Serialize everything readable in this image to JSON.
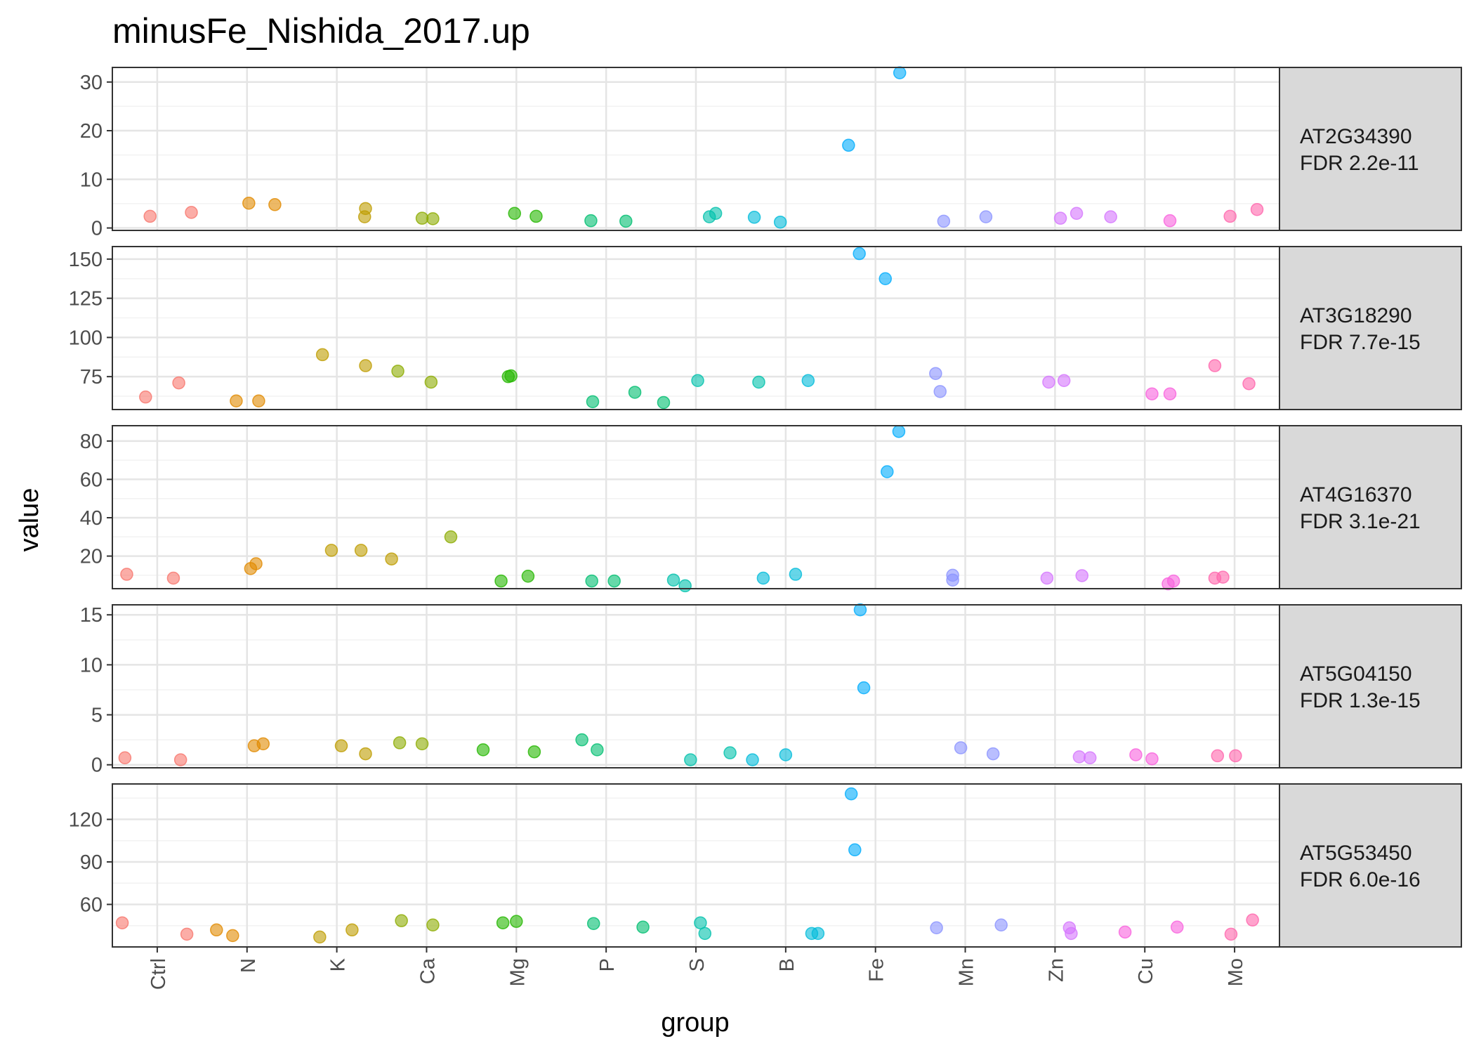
{
  "chart_data": {
    "type": "scatter",
    "title": "minusFe_Nishida_2017.up",
    "xlabel": "group",
    "ylabel": "value",
    "categories": [
      "Ctrl",
      "N",
      "K",
      "Ca",
      "Mg",
      "P",
      "S",
      "B",
      "Fe",
      "Mn",
      "Zn",
      "Cu",
      "Mo"
    ],
    "colors": {
      "Ctrl": "#F8766D",
      "N": "#E18A00",
      "K": "#BE9C00",
      "Ca": "#8CAB00",
      "Mg": "#24B700",
      "P": "#00BE70",
      "S": "#00C1AB",
      "B": "#00BBDA",
      "Fe": "#00ACFC",
      "Mn": "#8B93FF",
      "Zn": "#D575FE",
      "Cu": "#F962DD",
      "Mo": "#FF65AC"
    },
    "grid": true,
    "legend": "none",
    "panels": [
      {
        "gene": "AT2G34390",
        "fdr": "FDR 2.2e-11",
        "ylim": [
          -0.5,
          33
        ],
        "yticks": [
          0,
          10,
          20,
          30
        ],
        "points": [
          {
            "group": "Ctrl",
            "jitter": -0.08,
            "value": 2.4
          },
          {
            "group": "Ctrl",
            "jitter": 0.38,
            "value": 3.2
          },
          {
            "group": "N",
            "jitter": 0.02,
            "value": 5.1
          },
          {
            "group": "N",
            "jitter": 0.31,
            "value": 4.8
          },
          {
            "group": "K",
            "jitter": 0.32,
            "value": 4.0
          },
          {
            "group": "K",
            "jitter": 0.31,
            "value": 2.3
          },
          {
            "group": "Ca",
            "jitter": -0.05,
            "value": 2.0
          },
          {
            "group": "Ca",
            "jitter": 0.07,
            "value": 1.9
          },
          {
            "group": "Mg",
            "jitter": -0.02,
            "value": 3.0
          },
          {
            "group": "Mg",
            "jitter": 0.22,
            "value": 2.4
          },
          {
            "group": "P",
            "jitter": -0.17,
            "value": 1.5
          },
          {
            "group": "P",
            "jitter": 0.22,
            "value": 1.4
          },
          {
            "group": "S",
            "jitter": 0.15,
            "value": 2.3
          },
          {
            "group": "S",
            "jitter": 0.22,
            "value": 3.0
          },
          {
            "group": "B",
            "jitter": -0.35,
            "value": 2.2
          },
          {
            "group": "B",
            "jitter": -0.06,
            "value": 1.2
          },
          {
            "group": "Fe",
            "jitter": -0.3,
            "value": 17.0
          },
          {
            "group": "Fe",
            "jitter": 0.27,
            "value": 31.9
          },
          {
            "group": "Mn",
            "jitter": -0.24,
            "value": 1.4
          },
          {
            "group": "Mn",
            "jitter": 0.23,
            "value": 2.3
          },
          {
            "group": "Zn",
            "jitter": 0.06,
            "value": 2.0
          },
          {
            "group": "Zn",
            "jitter": 0.24,
            "value": 3.0
          },
          {
            "group": "Zn",
            "jitter": 0.62,
            "value": 2.3
          },
          {
            "group": "Cu",
            "jitter": 0.28,
            "value": 1.5
          },
          {
            "group": "Mo",
            "jitter": -0.05,
            "value": 2.4
          },
          {
            "group": "Mo",
            "jitter": 0.25,
            "value": 3.8
          }
        ]
      },
      {
        "gene": "AT3G18290",
        "fdr": "FDR 7.7e-15",
        "ylim": [
          54,
          158
        ],
        "yticks": [
          75,
          100,
          125,
          150
        ],
        "points": [
          {
            "group": "Ctrl",
            "jitter": -0.13,
            "value": 62
          },
          {
            "group": "Ctrl",
            "jitter": 0.24,
            "value": 71
          },
          {
            "group": "N",
            "jitter": -0.12,
            "value": 59.5
          },
          {
            "group": "N",
            "jitter": 0.13,
            "value": 59.5
          },
          {
            "group": "K",
            "jitter": -0.16,
            "value": 89
          },
          {
            "group": "K",
            "jitter": 0.32,
            "value": 82
          },
          {
            "group": "Ca",
            "jitter": -0.32,
            "value": 78.5
          },
          {
            "group": "Ca",
            "jitter": 0.05,
            "value": 71.5
          },
          {
            "group": "Mg",
            "jitter": -0.09,
            "value": 75
          },
          {
            "group": "Mg",
            "jitter": -0.06,
            "value": 75.5
          },
          {
            "group": "P",
            "jitter": -0.15,
            "value": 59
          },
          {
            "group": "P",
            "jitter": 0.32,
            "value": 65
          },
          {
            "group": "P",
            "jitter": 0.64,
            "value": 58.5
          },
          {
            "group": "S",
            "jitter": 0.02,
            "value": 72.5
          },
          {
            "group": "S",
            "jitter": 0.7,
            "value": 71.5
          },
          {
            "group": "B",
            "jitter": 0.25,
            "value": 72.5
          },
          {
            "group": "Fe",
            "jitter": -0.18,
            "value": 153.5
          },
          {
            "group": "Fe",
            "jitter": 0.11,
            "value": 137.5
          },
          {
            "group": "Mn",
            "jitter": -0.33,
            "value": 77
          },
          {
            "group": "Mn",
            "jitter": -0.28,
            "value": 65.5
          },
          {
            "group": "Zn",
            "jitter": -0.07,
            "value": 71.5
          },
          {
            "group": "Zn",
            "jitter": 0.1,
            "value": 72.5
          },
          {
            "group": "Cu",
            "jitter": 0.08,
            "value": 64
          },
          {
            "group": "Cu",
            "jitter": 0.28,
            "value": 64
          },
          {
            "group": "Mo",
            "jitter": -0.22,
            "value": 82
          },
          {
            "group": "Mo",
            "jitter": 0.16,
            "value": 70.5
          }
        ]
      },
      {
        "gene": "AT4G16370",
        "fdr": "FDR 3.1e-21",
        "ylim": [
          3,
          88
        ],
        "yticks": [
          20,
          40,
          60,
          80
        ],
        "points": [
          {
            "group": "Ctrl",
            "jitter": -0.34,
            "value": 10.5
          },
          {
            "group": "Ctrl",
            "jitter": 0.18,
            "value": 8.5
          },
          {
            "group": "N",
            "jitter": 0.04,
            "value": 13.5
          },
          {
            "group": "N",
            "jitter": 0.1,
            "value": 16
          },
          {
            "group": "K",
            "jitter": -0.06,
            "value": 23
          },
          {
            "group": "K",
            "jitter": 0.27,
            "value": 23
          },
          {
            "group": "K",
            "jitter": 0.61,
            "value": 18.5
          },
          {
            "group": "Ca",
            "jitter": 0.27,
            "value": 30
          },
          {
            "group": "Mg",
            "jitter": -0.17,
            "value": 7
          },
          {
            "group": "Mg",
            "jitter": 0.13,
            "value": 9.5
          },
          {
            "group": "P",
            "jitter": -0.16,
            "value": 7
          },
          {
            "group": "P",
            "jitter": 0.09,
            "value": 7
          },
          {
            "group": "S",
            "jitter": -0.25,
            "value": 7.5
          },
          {
            "group": "S",
            "jitter": -0.12,
            "value": 4.5
          },
          {
            "group": "B",
            "jitter": -0.25,
            "value": 8.5
          },
          {
            "group": "B",
            "jitter": 0.11,
            "value": 10.5
          },
          {
            "group": "Fe",
            "jitter": 0.13,
            "value": 64
          },
          {
            "group": "Fe",
            "jitter": 0.26,
            "value": 85
          },
          {
            "group": "Mn",
            "jitter": -0.14,
            "value": 10
          },
          {
            "group": "Mn",
            "jitter": -0.14,
            "value": 7.5
          },
          {
            "group": "Zn",
            "jitter": -0.09,
            "value": 8.5
          },
          {
            "group": "Zn",
            "jitter": 0.3,
            "value": 9.8
          },
          {
            "group": "Cu",
            "jitter": 0.26,
            "value": 5.5
          },
          {
            "group": "Cu",
            "jitter": 0.32,
            "value": 7
          },
          {
            "group": "Mo",
            "jitter": -0.22,
            "value": 8.5
          },
          {
            "group": "Mo",
            "jitter": -0.13,
            "value": 9
          }
        ]
      },
      {
        "gene": "AT5G04150",
        "fdr": "FDR 1.3e-15",
        "ylim": [
          -0.3,
          16
        ],
        "yticks": [
          0,
          5,
          10,
          15
        ],
        "points": [
          {
            "group": "Ctrl",
            "jitter": -0.36,
            "value": 0.7
          },
          {
            "group": "Ctrl",
            "jitter": 0.26,
            "value": 0.5
          },
          {
            "group": "N",
            "jitter": 0.08,
            "value": 1.9
          },
          {
            "group": "N",
            "jitter": 0.18,
            "value": 2.1
          },
          {
            "group": "K",
            "jitter": 0.05,
            "value": 1.9
          },
          {
            "group": "K",
            "jitter": 0.32,
            "value": 1.1
          },
          {
            "group": "Ca",
            "jitter": -0.3,
            "value": 2.2
          },
          {
            "group": "Ca",
            "jitter": -0.05,
            "value": 2.1
          },
          {
            "group": "Mg",
            "jitter": -0.37,
            "value": 1.5
          },
          {
            "group": "Mg",
            "jitter": 0.2,
            "value": 1.3
          },
          {
            "group": "P",
            "jitter": -0.27,
            "value": 2.5
          },
          {
            "group": "P",
            "jitter": -0.1,
            "value": 1.5
          },
          {
            "group": "S",
            "jitter": -0.06,
            "value": 0.5
          },
          {
            "group": "S",
            "jitter": 0.38,
            "value": 1.2
          },
          {
            "group": "B",
            "jitter": -0.37,
            "value": 0.5
          },
          {
            "group": "B",
            "jitter": 0.0,
            "value": 1.0
          },
          {
            "group": "Fe",
            "jitter": -0.17,
            "value": 15.5
          },
          {
            "group": "Fe",
            "jitter": -0.13,
            "value": 7.7
          },
          {
            "group": "Mn",
            "jitter": -0.05,
            "value": 1.7
          },
          {
            "group": "Mn",
            "jitter": 0.31,
            "value": 1.1
          },
          {
            "group": "Zn",
            "jitter": 0.27,
            "value": 0.8
          },
          {
            "group": "Zn",
            "jitter": 0.39,
            "value": 0.7
          },
          {
            "group": "Cu",
            "jitter": -0.1,
            "value": 1.0
          },
          {
            "group": "Cu",
            "jitter": 0.08,
            "value": 0.6
          },
          {
            "group": "Mo",
            "jitter": -0.19,
            "value": 0.9
          },
          {
            "group": "Mo",
            "jitter": 0.01,
            "value": 0.9
          }
        ]
      },
      {
        "gene": "AT5G53450",
        "fdr": "FDR 6.0e-16",
        "ylim": [
          30,
          145
        ],
        "yticks": [
          60,
          90,
          120
        ],
        "points": [
          {
            "group": "Ctrl",
            "jitter": -0.39,
            "value": 47
          },
          {
            "group": "Ctrl",
            "jitter": 0.33,
            "value": 39
          },
          {
            "group": "N",
            "jitter": -0.34,
            "value": 42
          },
          {
            "group": "N",
            "jitter": -0.16,
            "value": 38
          },
          {
            "group": "K",
            "jitter": -0.19,
            "value": 37
          },
          {
            "group": "K",
            "jitter": 0.17,
            "value": 42
          },
          {
            "group": "Ca",
            "jitter": -0.28,
            "value": 48.5
          },
          {
            "group": "Ca",
            "jitter": 0.07,
            "value": 45.5
          },
          {
            "group": "Mg",
            "jitter": -0.15,
            "value": 47
          },
          {
            "group": "Mg",
            "jitter": 0.0,
            "value": 48
          },
          {
            "group": "P",
            "jitter": -0.14,
            "value": 46.5
          },
          {
            "group": "P",
            "jitter": 0.41,
            "value": 44
          },
          {
            "group": "S",
            "jitter": 0.05,
            "value": 47
          },
          {
            "group": "S",
            "jitter": 0.1,
            "value": 39.5
          },
          {
            "group": "B",
            "jitter": 0.29,
            "value": 39.5
          },
          {
            "group": "B",
            "jitter": 0.36,
            "value": 39.5
          },
          {
            "group": "Fe",
            "jitter": -0.27,
            "value": 138
          },
          {
            "group": "Fe",
            "jitter": -0.23,
            "value": 98.5
          },
          {
            "group": "Mn",
            "jitter": -0.32,
            "value": 43.5
          },
          {
            "group": "Mn",
            "jitter": 0.4,
            "value": 45.5
          },
          {
            "group": "Zn",
            "jitter": 0.16,
            "value": 43.5
          },
          {
            "group": "Zn",
            "jitter": 0.18,
            "value": 39.5
          },
          {
            "group": "Cu",
            "jitter": -0.22,
            "value": 40.5
          },
          {
            "group": "Cu",
            "jitter": 0.36,
            "value": 44
          },
          {
            "group": "Mo",
            "jitter": -0.04,
            "value": 39
          },
          {
            "group": "Mo",
            "jitter": 0.2,
            "value": 49
          }
        ]
      }
    ]
  }
}
